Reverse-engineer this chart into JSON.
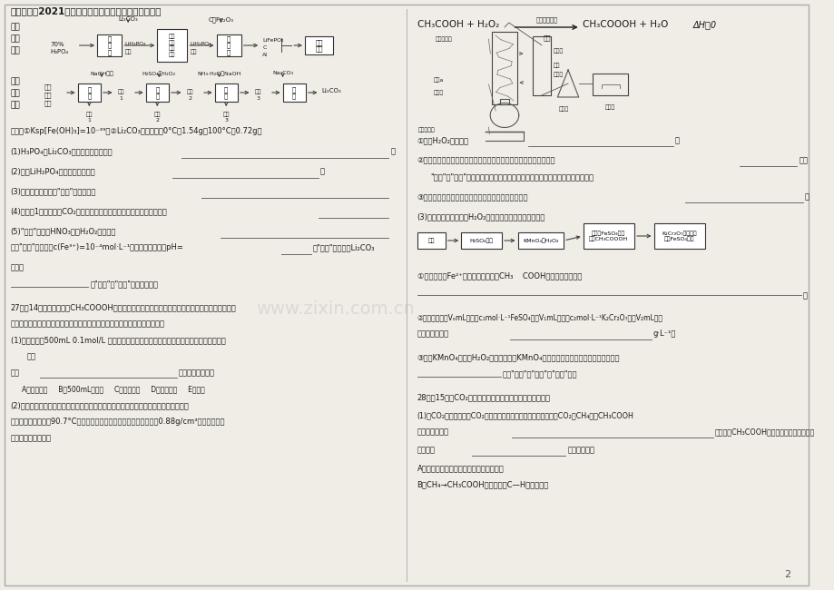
{
  "title": "宁夏中卫市2021届高三化学下学期第三次模拟考试试题",
  "page_number": "2",
  "background_color": "#f0ede6",
  "text_color": "#1a1a1a",
  "watermark": "www.zixin.com.cn",
  "fontsize_title": 7.5,
  "fontsize_body": 6.0,
  "fontsize_small": 5.0
}
